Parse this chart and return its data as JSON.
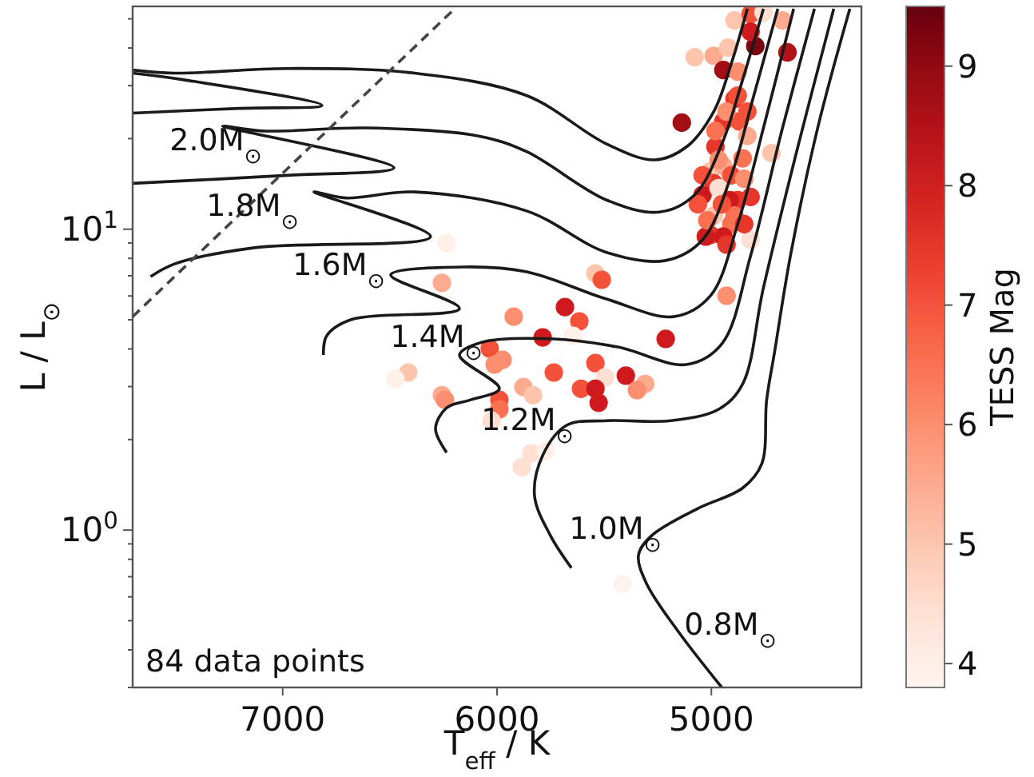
{
  "chart_data": {
    "type": "scatter",
    "xlabel": "T$_{eff}$ / K",
    "ylabel": "L / L$_{⊙}$",
    "clabel": "TESS Mag",
    "xlim": [
      7700,
      4300
    ],
    "xticks": [
      7000,
      6000,
      5000
    ],
    "ylim": [
      0.3,
      55
    ],
    "log": "y",
    "yticks": [
      {
        "value": 0.3,
        "label": null
      },
      {
        "value": 0.4,
        "label": null
      },
      {
        "value": 0.5,
        "label": null
      },
      {
        "value": 0.6,
        "label": null
      },
      {
        "value": 0.7,
        "label": null
      },
      {
        "value": 0.8,
        "label": null
      },
      {
        "value": 0.9,
        "label": null
      },
      {
        "value": 1,
        "label": "10$^{0}$"
      },
      {
        "value": 2,
        "label": null
      },
      {
        "value": 3,
        "label": null
      },
      {
        "value": 4,
        "label": null
      },
      {
        "value": 5,
        "label": null
      },
      {
        "value": 6,
        "label": null
      },
      {
        "value": 7,
        "label": null
      },
      {
        "value": 8,
        "label": null
      },
      {
        "value": 9,
        "label": null
      },
      {
        "value": 10,
        "label": "10$^{1}$"
      },
      {
        "value": 20,
        "label": null
      },
      {
        "value": 30,
        "label": null
      },
      {
        "value": 40,
        "label": null
      },
      {
        "value": 50,
        "label": null
      }
    ],
    "clim": [
      3.8,
      9.5
    ],
    "cticks": [
      4,
      5,
      6,
      7,
      8,
      9
    ],
    "series": [
      {
        "type": "scatter",
        "marker": "circle",
        "x": [
          4892,
          4817,
          4757,
          4668,
          5078,
          4989,
          4795,
          4645,
          4944,
          4892,
          4877,
          5138,
          4944,
          4869,
          4981,
          4854,
          4720,
          5004,
          4944,
          4907,
          4989,
          5041,
          4877,
          4966,
          4914,
          4817,
          4989,
          4892,
          4907,
          5004,
          4944,
          4817,
          4929,
          5541,
          5511,
          5683,
          4929,
          5026,
          6257,
          5922,
          5616,
          5787,
          5645,
          5213,
          6034,
          5974,
          6011,
          5735,
          5541,
          5496,
          5399,
          5309,
          5347,
          5608,
          5541,
          5526,
          5877,
          5832,
          6257,
          6243,
          5989,
          5989,
          6414,
          6474,
          6026,
          5840,
          5884,
          5772,
          6235,
          5414,
          4929,
          4832,
          4966,
          5041,
          4847,
          4951,
          5019,
          4847,
          4877,
          4817,
          4922,
          4981,
          5063,
          4832
        ],
        "values": [
          49.4,
          51.9,
          52.5,
          49.4,
          37.3,
          37.7,
          40.6,
          38.7,
          33.8,
          27.1,
          27.8,
          22.6,
          22.8,
          22.8,
          18.8,
          17.2,
          17.9,
          15.6,
          16.2,
          15.1,
          14.2,
          13.0,
          12.5,
          13.7,
          12.5,
          12.8,
          11.1,
          11.1,
          10.4,
          9.57,
          9.45,
          9.22,
          8.89,
          7.13,
          6.79,
          5.51,
          6.01,
          9.45,
          6.63,
          5.12,
          4.94,
          4.37,
          4.42,
          4.32,
          4.01,
          3.68,
          3.55,
          3.34,
          3.59,
          3.22,
          3.26,
          3.06,
          2.92,
          2.95,
          2.95,
          2.65,
          2.99,
          2.81,
          2.81,
          2.71,
          2.71,
          2.52,
          3.34,
          3.18,
          2.31,
          1.8,
          1.62,
          1.83,
          9.0,
          0.663,
          24.6,
          20.4,
          17.0,
          15.1,
          14.7,
          12.1,
          10.7,
          10.4,
          33.4,
          45.3,
          40.1,
          21.2,
          12.1,
          24.6
        ],
        "colors": [
          "#fcc5ac",
          "#f4513b",
          "#fee0d2",
          "#fcab8f",
          "#fcc5ac",
          "#fcab8f",
          "#7a0510",
          "#b31318",
          "#a40f15",
          "#e6372a",
          "#f4513b",
          "#a40f15",
          "#e6372a",
          "#f4513b",
          "#e6372a",
          "#fb7252",
          "#fcc5ac",
          "#fcc5ac",
          "#fcab8f",
          "#f4513b",
          "#e6372a",
          "#ce1a1e",
          "#e6372a",
          "#fee0d2",
          "#ce1a1e",
          "#e6372a",
          "#fcc5ac",
          "#fb7252",
          "#fb7252",
          "#e6372a",
          "#ce1a1e",
          "#fee0d2",
          "#e6372a",
          "#fcc5ac",
          "#f4513b",
          "#ce1a1e",
          "#fc8f6f",
          "#ce1a1e",
          "#fcab8f",
          "#fc8f6f",
          "#f4513b",
          "#ce1a1e",
          "#fff0e8",
          "#ce1a1e",
          "#f4513b",
          "#fc8f6f",
          "#fc8f6f",
          "#f4513b",
          "#f4513b",
          "#fee0d2",
          "#ce1a1e",
          "#fcab8f",
          "#fc8f6f",
          "#f4513b",
          "#ce1a1e",
          "#ce1a1e",
          "#fcab8f",
          "#fcc5ac",
          "#fcab8f",
          "#fc8f6f",
          "#f4513b",
          "#fb7252",
          "#fcc5ac",
          "#fff0e8",
          "#fee0d2",
          "#fee0d2",
          "#fee0d2",
          "#fff0e8",
          "#fff0e8",
          "#fff3ed",
          "#fc8f6f",
          "#fcab8f",
          "#fc8f6f",
          "#f4513b",
          "#fc8f6f",
          "#f4513b",
          "#fb7252",
          "#e6372a",
          "#fc8f6f",
          "#ce1a1e",
          "#fcc5ac",
          "#fb7252",
          "#f4513b",
          "#f4513b"
        ],
        "cvalues": [
          5,
          7,
          4.5,
          5.5,
          5,
          5.5,
          9.3,
          8.5,
          8.8,
          7.5,
          7,
          8.8,
          7.5,
          7,
          7.5,
          6.5,
          5,
          5,
          5.5,
          7,
          7.5,
          8,
          7.5,
          4.5,
          8,
          7.5,
          5,
          6.5,
          6.5,
          7.5,
          8,
          4.5,
          7.5,
          5,
          7,
          8,
          6,
          8,
          5.5,
          6,
          7,
          8,
          4,
          8,
          7,
          6,
          6,
          7,
          7,
          4.5,
          8,
          5.5,
          6,
          7,
          8,
          8,
          5.5,
          5,
          5.5,
          6,
          7,
          6.5,
          5,
          4,
          4.5,
          4.5,
          4.5,
          4,
          4,
          3.9,
          6,
          5.5,
          6,
          7,
          6,
          7,
          6.5,
          7.5,
          6,
          8,
          5,
          6.5,
          7,
          7
        ]
      },
      {
        "type": "line",
        "color": "#1a1a1a",
        "x": [
          7700,
          7205,
          6817,
          7466,
          7700
        ],
        "values": [
          24.3,
          25.2,
          25.8,
          31.4,
          33.0
        ]
      },
      {
        "type": "line",
        "color": "#1a1a1a",
        "x": [
          7700,
          7504,
          6981,
          6384,
          5862,
          5489,
          5265,
          5115,
          4989,
          4907,
          4832
        ],
        "values": [
          33.8,
          33.0,
          34.2,
          33.0,
          27.8,
          19.2,
          17.0,
          18.8,
          24.6,
          35.5,
          54
        ]
      },
      {
        "type": "line",
        "color": "#1a1a1a",
        "x": [
          7700,
          6981,
          6481,
          7280,
          7093,
          6608,
          6086,
          5862,
          5489,
          5242,
          5078,
          4951,
          4854,
          4757
        ],
        "values": [
          14.2,
          15.1,
          16.0,
          22.0,
          21.2,
          21.7,
          20.4,
          18.1,
          12.5,
          11.4,
          13.0,
          19.2,
          31.4,
          54
        ]
      },
      {
        "type": "line",
        "color": "#1a1a1a",
        "x": [
          7616,
          7504,
          7131,
          6310,
          6854,
          6705,
          6384,
          5862,
          5489,
          5213,
          5041,
          4907,
          4802,
          4690
        ],
        "values": [
          6.96,
          7.67,
          8.68,
          9.45,
          13.3,
          12.7,
          13.3,
          11.5,
          8.37,
          7.87,
          9.22,
          15.1,
          27.8,
          54
        ]
      },
      {
        "type": "line",
        "color": "#1a1a1a",
        "x": [
          6810,
          6795,
          6683,
          6175,
          6496,
          6160,
          5862,
          5489,
          5175,
          5004,
          4877,
          4757,
          4616
        ],
        "values": [
          3.82,
          4.42,
          5.0,
          5.45,
          7.05,
          7.49,
          7.22,
          5.86,
          5.12,
          6.01,
          10.4,
          21.7,
          54
        ]
      },
      {
        "type": "line",
        "color": "#1a1a1a",
        "x": [
          6235,
          6287,
          6235,
          6123,
          5989,
          6175,
          6071,
          5735,
          5437,
          5116,
          4951,
          4817,
          4668,
          4519
        ],
        "values": [
          1.81,
          2.17,
          2.55,
          2.71,
          2.95,
          3.82,
          4.21,
          4.32,
          4.06,
          3.55,
          4.16,
          8.16,
          21.7,
          54
        ]
      },
      {
        "type": "line",
        "color": "#1a1a1a",
        "x": [
          5653,
          5750,
          5825,
          5787,
          5675,
          5489,
          5190,
          4966,
          4854,
          4757,
          4593,
          4429
        ],
        "values": [
          0.749,
          0.957,
          1.3,
          1.77,
          2.23,
          2.31,
          2.31,
          2.52,
          3.06,
          6.39,
          19.2,
          54
        ]
      },
      {
        "type": "line",
        "color": "#1a1a1a",
        "x": [
          4951,
          5153,
          5302,
          5340,
          5280,
          5063,
          4854,
          4765,
          4742,
          4705,
          4631,
          4504,
          4354
        ],
        "values": [
          0.3,
          0.459,
          0.663,
          0.826,
          0.957,
          1.18,
          1.38,
          1.66,
          2.71,
          3.91,
          8.16,
          21.7,
          54
        ]
      },
      {
        "type": "line",
        "color": "#444444",
        "line_style": "dashed",
        "x": [
          7700,
          6198
        ],
        "values": [
          5.12,
          54
        ]
      }
    ],
    "annotations": [
      "2.0M$_{⊙}$",
      "1.8M$_{⊙}$",
      "1.6M$_{⊙}$",
      "1.4M$_{⊙}$",
      "1.2M$_{⊙}$",
      "1.0M$_{⊙}$",
      "0.8M$_{⊙}$",
      "84 data points"
    ]
  }
}
